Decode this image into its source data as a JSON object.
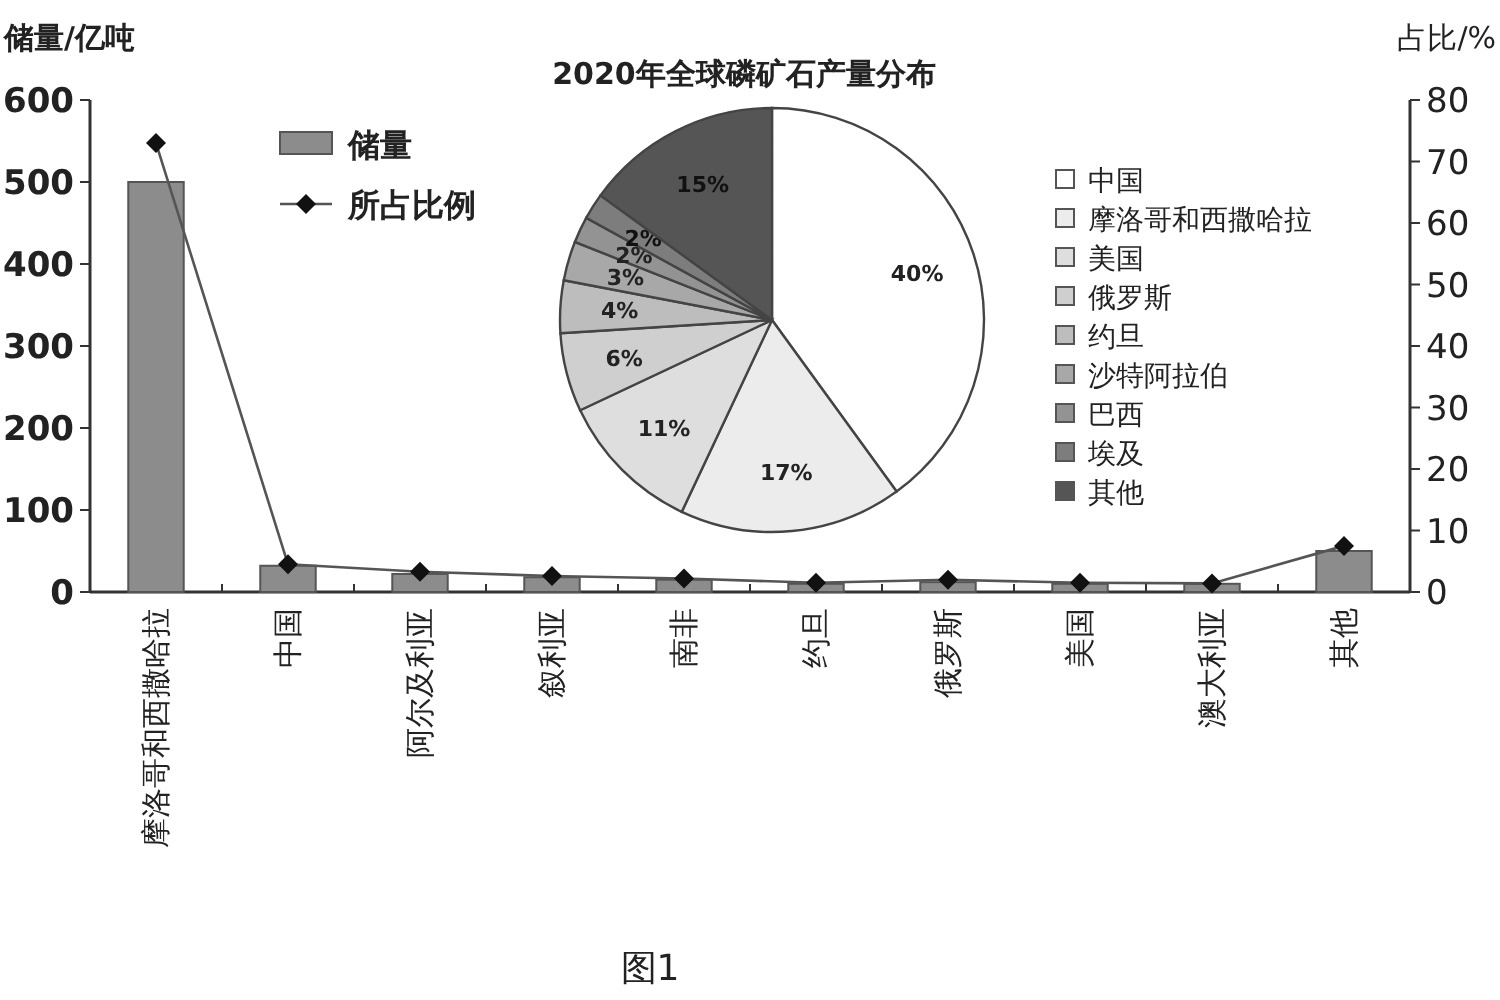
{
  "chart_data": [
    {
      "type": "bar",
      "categories": [
        "摩洛哥和西撒哈拉",
        "中国",
        "阿尔及利亚",
        "叙利亚",
        "南非",
        "约旦",
        "俄罗斯",
        "美国",
        "澳大利亚",
        "其他"
      ],
      "series": [
        {
          "name": "储量",
          "type": "bar",
          "color": "#8c8c8c",
          "values": [
            500,
            32,
            22,
            18,
            15,
            10,
            12,
            10,
            10,
            50
          ]
        },
        {
          "name": "所占比例",
          "type": "line",
          "axis": "y2",
          "color": "#555555",
          "marker": "diamond",
          "values": [
            73,
            4.5,
            3.3,
            2.6,
            2.2,
            1.5,
            2,
            1.5,
            1.4,
            7.5
          ]
        }
      ],
      "ylabel": "储量/亿吨",
      "y2label": "占比/%",
      "ylim": [
        0,
        600
      ],
      "yticks": [
        0,
        100,
        200,
        300,
        400,
        500,
        600
      ],
      "y2lim": [
        0,
        80
      ],
      "y2ticks": [
        0,
        10,
        20,
        30,
        40,
        50,
        60,
        70,
        80
      ],
      "legend": "top left",
      "annotations": [
        "图1"
      ]
    },
    {
      "type": "pie",
      "title": "2020年全球磷矿石产量分布",
      "categories": [
        "中国",
        "摩洛哥和西撒哈拉",
        "美国",
        "俄罗斯",
        "约旦",
        "沙特阿拉伯",
        "巴西",
        "埃及",
        "其他"
      ],
      "values": [
        40,
        17,
        11,
        6,
        4,
        3,
        2,
        2,
        15
      ],
      "colors": [
        "#ffffff",
        "#ececec",
        "#dedede",
        "#cfcfcf",
        "#bdbdbd",
        "#a8a8a8",
        "#939393",
        "#7d7d7d",
        "#555555"
      ],
      "value_labels": [
        "40%",
        "17%",
        "11%",
        "6%",
        "4%",
        "3%",
        "2%",
        "2%",
        "15%"
      ],
      "legend": "right"
    }
  ]
}
